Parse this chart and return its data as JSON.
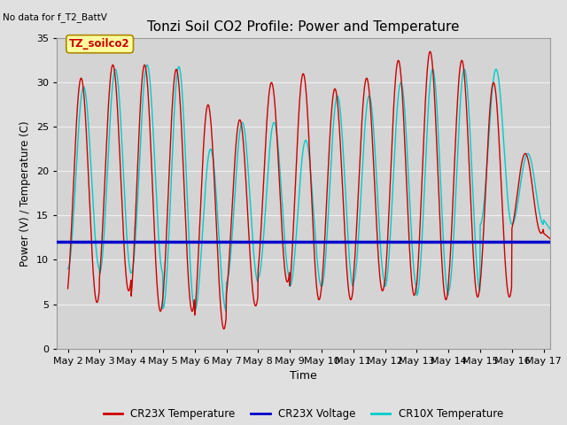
{
  "title": "Tonzi Soil CO2 Profile: Power and Temperature",
  "no_data_text": "No data for f_T2_BattV",
  "xlabel": "Time",
  "ylabel": "Power (V) / Temperature (C)",
  "ylim": [
    0,
    35
  ],
  "yticks": [
    0,
    5,
    10,
    15,
    20,
    25,
    30,
    35
  ],
  "xtick_labels": [
    "May 2",
    "May 3",
    "May 4",
    "May 5",
    "May 6",
    "May 7",
    "May 8",
    "May 9",
    "May 10",
    "May 11",
    "May 12",
    "May 13",
    "May 14",
    "May 15",
    "May 16",
    "May 17"
  ],
  "xtick_positions": [
    2,
    3,
    4,
    5,
    6,
    7,
    8,
    9,
    10,
    11,
    12,
    13,
    14,
    15,
    16,
    17
  ],
  "bg_color": "#e0e0e0",
  "plot_bg_color": "#d4d4d4",
  "grid_color": "#f0f0f0",
  "cr23x_color": "#cc0000",
  "cr10x_color": "#00cccc",
  "voltage_color": "#0000cc",
  "voltage_value": 12.0,
  "annotation_box_color": "#ffffa0",
  "annotation_box_border": "#aa8800",
  "annotation_text": "TZ_soilco2",
  "annotation_text_color": "#cc0000",
  "cr23x_peaks": [
    30.5,
    32.0,
    32.0,
    31.5,
    27.5,
    25.8,
    30.0,
    31.0,
    29.3,
    30.5,
    32.5,
    33.5,
    32.5,
    30.0,
    22.0
  ],
  "cr23x_troughs": [
    5.2,
    6.5,
    4.2,
    4.2,
    2.2,
    4.8,
    7.5,
    5.5,
    5.5,
    6.5,
    6.0,
    5.5,
    5.8,
    5.8,
    13.0
  ],
  "cr10x_peaks": [
    29.5,
    31.5,
    32.0,
    31.8,
    22.5,
    25.5,
    25.5,
    23.5,
    28.5,
    28.5,
    30.0,
    31.5,
    31.5,
    31.5,
    22.0
  ],
  "cr10x_troughs": [
    9.0,
    8.5,
    8.5,
    4.5,
    4.2,
    7.5,
    8.0,
    7.0,
    7.0,
    7.5,
    7.0,
    6.0,
    6.5,
    14.0,
    14.0
  ],
  "cr23x_phase": 0.08,
  "cr10x_phase": 0.0
}
